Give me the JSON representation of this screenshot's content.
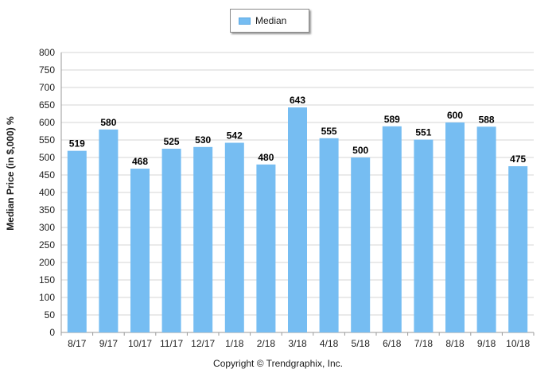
{
  "chart_data": {
    "type": "bar",
    "categories": [
      "8/17",
      "9/17",
      "10/17",
      "11/17",
      "12/17",
      "1/18",
      "2/18",
      "3/18",
      "4/18",
      "5/18",
      "6/18",
      "7/18",
      "8/18",
      "9/18",
      "10/18"
    ],
    "series": [
      {
        "name": "Median",
        "values": [
          519,
          580,
          468,
          525,
          530,
          542,
          480,
          643,
          555,
          500,
          589,
          551,
          600,
          588,
          475
        ]
      }
    ],
    "ylabel": "Median Price (in $,000) %",
    "xlabel": "",
    "ylim": [
      0,
      800
    ],
    "yticks": [
      0,
      50,
      100,
      150,
      200,
      250,
      300,
      350,
      400,
      450,
      500,
      550,
      600,
      650,
      700,
      750,
      800
    ],
    "grid": true,
    "legend_position": "top-center",
    "bar_color": "#76bdf2"
  },
  "legend": {
    "label": "Median"
  },
  "footer": {
    "copyright": "Copyright © Trendgraphix, Inc."
  }
}
